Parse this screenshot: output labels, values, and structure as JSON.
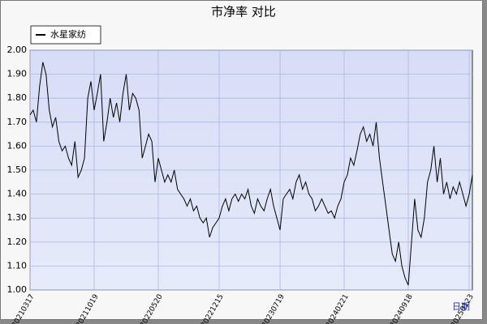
{
  "chart_data": {
    "type": "line",
    "title": "市净率  对比",
    "x_label": "日期",
    "series": [
      {
        "name": "水星家纺",
        "color": "#000000",
        "values": [
          1.73,
          1.75,
          1.7,
          1.85,
          1.95,
          1.9,
          1.75,
          1.68,
          1.72,
          1.62,
          1.58,
          1.6,
          1.55,
          1.52,
          1.62,
          1.47,
          1.5,
          1.55,
          1.8,
          1.87,
          1.75,
          1.82,
          1.9,
          1.62,
          1.7,
          1.8,
          1.72,
          1.78,
          1.7,
          1.82,
          1.9,
          1.75,
          1.82,
          1.8,
          1.75,
          1.55,
          1.6,
          1.65,
          1.62,
          1.45,
          1.55,
          1.5,
          1.45,
          1.48,
          1.45,
          1.5,
          1.42,
          1.4,
          1.38,
          1.35,
          1.38,
          1.33,
          1.35,
          1.3,
          1.28,
          1.3,
          1.22,
          1.26,
          1.28,
          1.3,
          1.35,
          1.38,
          1.33,
          1.38,
          1.4,
          1.37,
          1.4,
          1.38,
          1.42,
          1.35,
          1.32,
          1.38,
          1.35,
          1.33,
          1.38,
          1.42,
          1.35,
          1.3,
          1.25,
          1.38,
          1.4,
          1.42,
          1.38,
          1.45,
          1.48,
          1.42,
          1.45,
          1.4,
          1.38,
          1.33,
          1.35,
          1.38,
          1.35,
          1.32,
          1.33,
          1.3,
          1.35,
          1.38,
          1.45,
          1.48,
          1.55,
          1.52,
          1.58,
          1.65,
          1.68,
          1.62,
          1.65,
          1.6,
          1.7,
          1.55,
          1.45,
          1.35,
          1.25,
          1.15,
          1.12,
          1.2,
          1.1,
          1.05,
          1.02,
          1.2,
          1.38,
          1.25,
          1.22,
          1.3,
          1.45,
          1.5,
          1.6,
          1.45,
          1.55,
          1.4,
          1.45,
          1.38,
          1.43,
          1.4,
          1.45,
          1.4,
          1.35,
          1.4,
          1.48
        ]
      }
    ],
    "xlim": [
      0,
      138
    ],
    "xticks": [
      {
        "value": 0,
        "label": "20210317"
      },
      {
        "value": 20,
        "label": "20211019"
      },
      {
        "value": 40,
        "label": "20220520"
      },
      {
        "value": 59,
        "label": "20221215"
      },
      {
        "value": 78,
        "label": "20230719"
      },
      {
        "value": 98,
        "label": "20240221"
      },
      {
        "value": 118,
        "label": "20240918"
      },
      {
        "value": 137,
        "label": "20250123"
      }
    ],
    "ylim": [
      1.0,
      2.0
    ],
    "yticks": [
      {
        "value": 1.0,
        "label": "1.00"
      },
      {
        "value": 1.1,
        "label": "1.10"
      },
      {
        "value": 1.2,
        "label": "1.20"
      },
      {
        "value": 1.3,
        "label": "1.30"
      },
      {
        "value": 1.4,
        "label": "1.40"
      },
      {
        "value": 1.5,
        "label": "1.50"
      },
      {
        "value": 1.6,
        "label": "1.60"
      },
      {
        "value": 1.7,
        "label": "1.70"
      },
      {
        "value": 1.8,
        "label": "1.80"
      },
      {
        "value": 1.9,
        "label": "1.90"
      },
      {
        "value": 2.0,
        "label": "2.00"
      }
    ],
    "grid": true
  }
}
